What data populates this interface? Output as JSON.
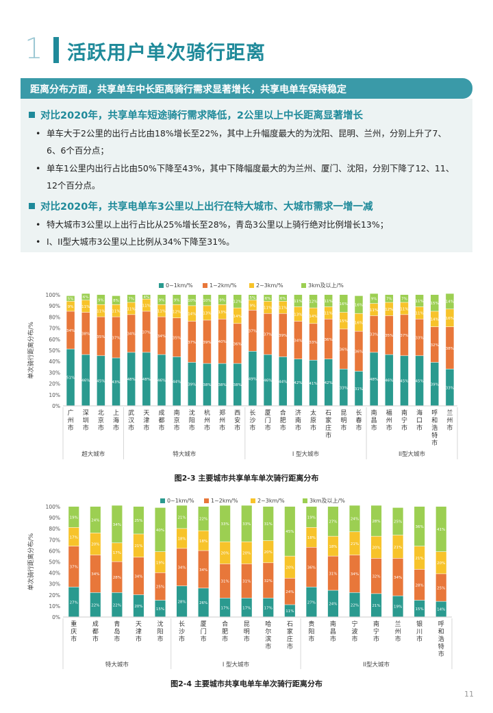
{
  "section": {
    "number": "1",
    "title": "活跃用户单次骑行距离"
  },
  "banner": "距离分布方面，共享单车中长距离骑行需求显著增长，共享电单车保持稳定",
  "points": [
    {
      "head": "对比2020年，共享单车短途骑行需求降低，2公里以上中长距离显著增长",
      "bullets": [
        "单车大于2公里的出行占比由18%增长至22%，其中上升幅度最大的为沈阳、昆明、兰州，分别上升了7、6、6个百分点；",
        "单车1公里内出行占比由50%下降至43%，其中下降幅度最大的为兰州、厦门、沈阳，分别下降了12、11、12个百分点。"
      ]
    },
    {
      "head": "对比2020年，共享电单车3公里以上出行在特大城市、大城市需求一增一减",
      "bullets": [
        "特大城市3公里以上出行占比从25%增长至28%，青岛3公里以上骑行绝对比例增长13%；",
        "I、II型大城市3公里以上比例从34%下降至31%。"
      ]
    }
  ],
  "colors": {
    "s0": "#2a9a8f",
    "s1": "#e8773a",
    "s2": "#f7c32a",
    "s3": "#9ccf52"
  },
  "chart_data": [
    {
      "type": "bar",
      "stacked": true,
      "title": "图2-3 主要城市共享单车单次骑行距离分布",
      "ylabel": "单次骑行距离分布/%",
      "ylim": [
        0,
        100
      ],
      "yticks": [
        "0%",
        "10%",
        "20%",
        "30%",
        "40%",
        "50%",
        "60%",
        "70%",
        "80%",
        "90%",
        "100%"
      ],
      "legend": [
        "0~1km/%",
        "1~2km/%",
        "2~3km/%",
        "3km及以上/%"
      ],
      "categories": [
        "广州市",
        "深圳市",
        "北京市",
        "上海市",
        "武汉市",
        "天津市",
        "成都市",
        "南京市",
        "沈阳市",
        "杭州市",
        "郑州市",
        "西安市",
        "长沙市",
        "厦门市",
        "合肥市",
        "济南市",
        "太原市",
        "石家庄市",
        "昆明市",
        "长春市",
        "南昌市",
        "福州市",
        "南宁市",
        "海口市",
        "呼和浩特市",
        "兰州市"
      ],
      "groups": [
        {
          "label": "超大城市",
          "count": 4
        },
        {
          "label": "特大城市",
          "count": 8
        },
        {
          "label": "I 型大城市",
          "count": 8
        },
        {
          "label": "II型大城市",
          "count": 6
        }
      ],
      "series": [
        {
          "name": "0~1km/%",
          "values": [
            51,
            46,
            45,
            43,
            48,
            48,
            46,
            44,
            39,
            38,
            38,
            38,
            49,
            46,
            44,
            42,
            41,
            42,
            33,
            31,
            48,
            46,
            45,
            45,
            39,
            33
          ]
        },
        {
          "name": "1~2km/%",
          "values": [
            34,
            38,
            35,
            37,
            34,
            37,
            34,
            35,
            37,
            39,
            40,
            36,
            37,
            37,
            39,
            34,
            33,
            36,
            36,
            36,
            33,
            35,
            37,
            33,
            32,
            38
          ]
        },
        {
          "name": "2~3km/%",
          "values": [
            9,
            11,
            11,
            11,
            11,
            11,
            11,
            12,
            14,
            13,
            13,
            14,
            9,
            11,
            11,
            13,
            14,
            11,
            15,
            16,
            11,
            12,
            11,
            11,
            14,
            16
          ]
        },
        {
          "name": "3km及以上/%",
          "values": [
            5,
            6,
            9,
            8,
            7,
            4,
            9,
            9,
            10,
            10,
            9,
            12,
            5,
            6,
            6,
            11,
            12,
            11,
            16,
            16,
            9,
            7,
            7,
            11,
            15,
            14
          ]
        }
      ]
    },
    {
      "type": "bar",
      "stacked": true,
      "title": "图2-4 主要城市共享电单车单次骑行距离分布",
      "ylabel": "单次骑行距离分布/%",
      "ylim": [
        0,
        100
      ],
      "yticks": [
        "0%",
        "10%",
        "20%",
        "30%",
        "40%",
        "50%",
        "60%",
        "70%",
        "80%",
        "90%",
        "100%"
      ],
      "legend": [
        "0~1km/%",
        "1~2km/%",
        "2~3km/%",
        "3km及以上/%"
      ],
      "categories": [
        "重庆市",
        "成都市",
        "青岛市",
        "天津市",
        "沈阳市",
        "长沙市",
        "厦门市",
        "合肥市",
        "昆明市",
        "哈尔滨市",
        "石家庄市",
        "贵阳市",
        "南昌市",
        "宁波市",
        "南宁市",
        "兰州市",
        "银川市",
        "呼和浩特市"
      ],
      "groups": [
        {
          "label": "特大城市",
          "count": 5
        },
        {
          "label": "I 型大城市",
          "count": 6
        },
        {
          "label": "II型大城市",
          "count": 7
        }
      ],
      "series": [
        {
          "name": "0~1km/%",
          "values": [
            27,
            22,
            22,
            20,
            15,
            28,
            26,
            17,
            17,
            17,
            11,
            27,
            24,
            22,
            21,
            19,
            15,
            14
          ]
        },
        {
          "name": "1~2km/%",
          "values": [
            37,
            34,
            28,
            34,
            25,
            34,
            34,
            31,
            31,
            32,
            24,
            36,
            31,
            34,
            32,
            34,
            28,
            25
          ]
        },
        {
          "name": "2~3km/%",
          "values": [
            17,
            20,
            17,
            21,
            19,
            18,
            18,
            20,
            20,
            20,
            20,
            18,
            18,
            21,
            20,
            21,
            21,
            20
          ]
        },
        {
          "name": "3km及以上/%",
          "values": [
            19,
            24,
            34,
            25,
            40,
            21,
            22,
            33,
            33,
            31,
            45,
            19,
            27,
            24,
            28,
            25,
            36,
            41
          ]
        }
      ]
    }
  ],
  "page_number": "11"
}
